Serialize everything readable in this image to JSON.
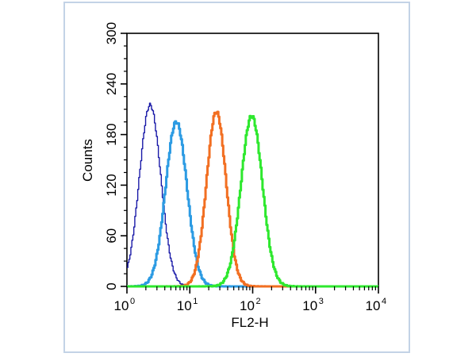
{
  "chart_data": {
    "type": "histogram",
    "title": "",
    "xlabel": "FL2-H",
    "ylabel": "Counts",
    "x_scale": "log",
    "xlim": [
      1,
      10000
    ],
    "ylim": [
      0,
      300
    ],
    "x_ticks": [
      {
        "base": "10",
        "exp": "0"
      },
      {
        "base": "10",
        "exp": "1"
      },
      {
        "base": "10",
        "exp": "2"
      },
      {
        "base": "10",
        "exp": "3"
      },
      {
        "base": "10",
        "exp": "4"
      }
    ],
    "y_ticks": [
      "0",
      "60",
      "120",
      "180",
      "240",
      "300"
    ],
    "y_tick_values": [
      0,
      60,
      120,
      180,
      240,
      300
    ],
    "series": [
      {
        "color": "#1a1aa8",
        "stroke_width": 1.4,
        "peak_x": 2.3,
        "peak_y": 215,
        "sigma_log": 0.17
      },
      {
        "color": "#2c9be3",
        "stroke_width": 3.0,
        "peak_x": 6.0,
        "peak_y": 195,
        "sigma_log": 0.17
      },
      {
        "color": "#f26f22",
        "stroke_width": 3.0,
        "peak_x": 26,
        "peak_y": 207,
        "sigma_log": 0.155
      },
      {
        "color": "#2ee82e",
        "stroke_width": 3.0,
        "peak_x": 95,
        "peak_y": 202,
        "sigma_log": 0.17
      }
    ],
    "grid": false,
    "legend": "none"
  }
}
